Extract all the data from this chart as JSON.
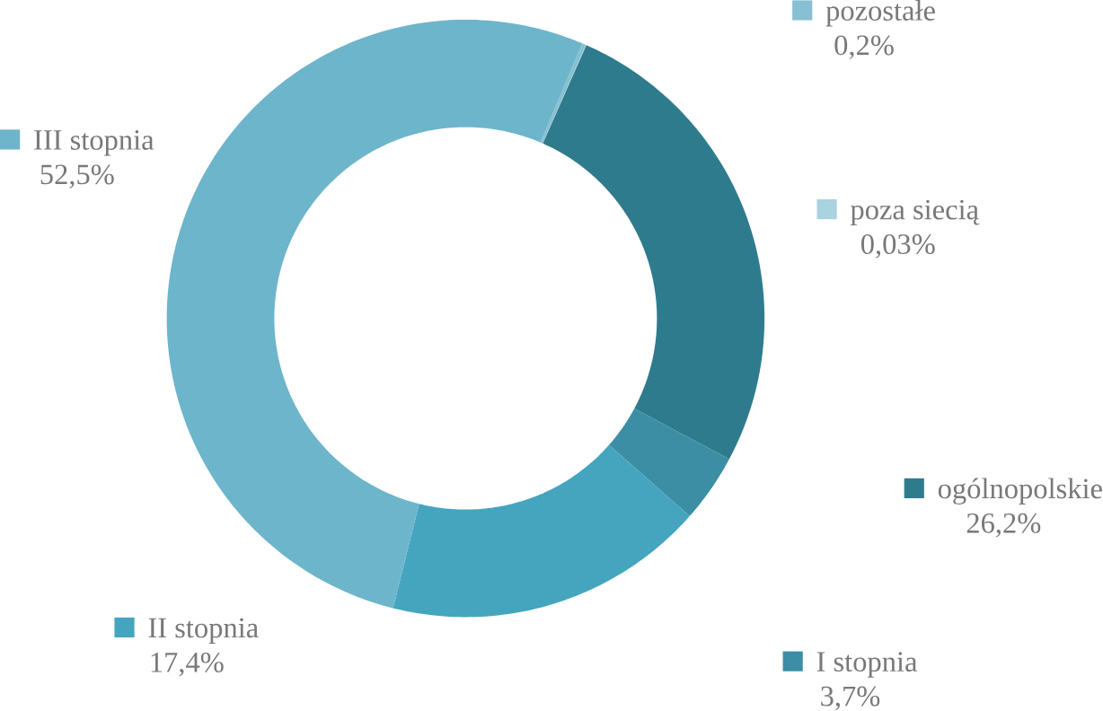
{
  "chart_data": {
    "type": "donut",
    "categories": [
      "pozostałe",
      "poza siecią",
      "ogólnopolskie",
      "I stopnia",
      "II stopnia",
      "III stopnia"
    ],
    "values": [
      0.2,
      0.03,
      26.2,
      3.7,
      17.4,
      52.5
    ],
    "value_labels": [
      "0,2%",
      "0,03%",
      "26,2%",
      "3,7%",
      "17,4%",
      "52,5%"
    ],
    "colors": [
      "#86c0d2",
      "#a8d3df",
      "#2f7b8e",
      "#3b8ea4",
      "#45a5bf",
      "#6db5cb"
    ],
    "legend": "right"
  }
}
